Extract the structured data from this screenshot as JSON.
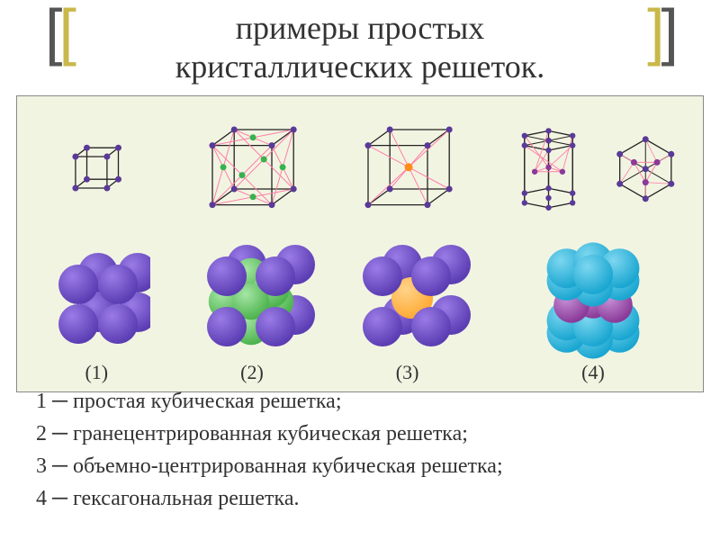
{
  "title": {
    "line1": "примеры простых",
    "line2": "кристаллических решеток.",
    "fontsize": 36,
    "color": "#333333"
  },
  "brackets": {
    "colors": [
      "#555555",
      "#c9b84a"
    ]
  },
  "panel": {
    "background": "#f2f4e2",
    "border_color": "#888888"
  },
  "colors": {
    "edge": "#222222",
    "diag": "#ff7fa8",
    "corner": "#5a3a98",
    "face": "#37b24d",
    "center": "#ff8c1a",
    "cluster_purple": "#5b3db3",
    "cluster_purple_hl": "#9a7be6",
    "cluster_green": "#4db34d",
    "cluster_green_hl": "#a6e6a6",
    "cluster_orange": "#ffaa33",
    "cluster_orange_hl": "#ffd38a",
    "cluster_cyan": "#1aa6d1",
    "cluster_cyan_hl": "#7dd7f0",
    "cluster_magenta": "#8a3a98"
  },
  "lattices": [
    {
      "label": "(1)",
      "type": "simple-cubic",
      "size": 70
    },
    {
      "label": "(2)",
      "type": "fcc",
      "size": 110
    },
    {
      "label": "(3)",
      "type": "bcc",
      "size": 110
    },
    {
      "label": "(4)",
      "type": "hexagonal",
      "size": 110
    }
  ],
  "legend": [
    "1 ─ простая кубическая решетка;",
    "2 ─ гранецентрированная кубическая решетка;",
    "3 ─ объемно-центрированная кубическая решетка;",
    "4 ─ гексагональная решетка."
  ]
}
